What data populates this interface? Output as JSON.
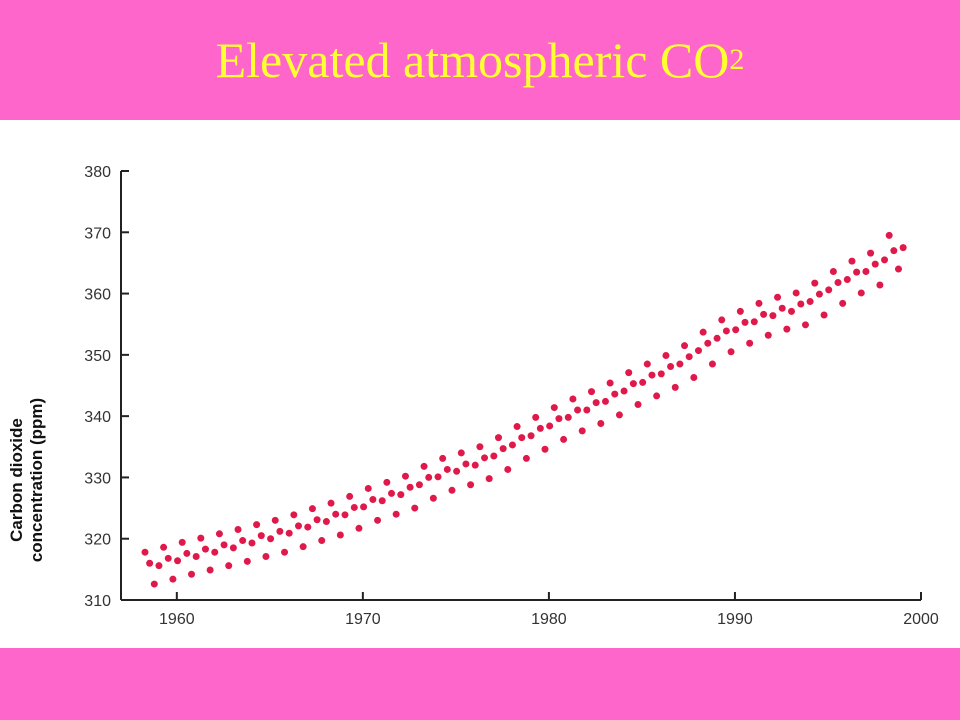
{
  "slide": {
    "title": "Elevated atmospheric CO",
    "title_subscript": "2"
  },
  "chart_data": {
    "type": "scatter",
    "ylabel": [
      "Carbon dioxide",
      "concentration (ppm)"
    ],
    "color": "#e0194b",
    "xlim": [
      1957,
      2000
    ],
    "xticks": [
      1960,
      1970,
      1980,
      1990,
      2000
    ],
    "ylim": [
      310,
      380
    ],
    "yticks": [
      310,
      320,
      330,
      340,
      350,
      360,
      370,
      380
    ],
    "x": [
      1958.29,
      1958.54,
      1958.79,
      1959.04,
      1959.29,
      1959.54,
      1959.79,
      1960.04,
      1960.29,
      1960.54,
      1960.79,
      1961.04,
      1961.29,
      1961.54,
      1961.79,
      1962.04,
      1962.29,
      1962.54,
      1962.79,
      1963.04,
      1963.29,
      1963.54,
      1963.79,
      1964.04,
      1964.29,
      1964.54,
      1964.79,
      1965.04,
      1965.29,
      1965.54,
      1965.79,
      1966.04,
      1966.29,
      1966.54,
      1966.79,
      1967.04,
      1967.29,
      1967.54,
      1967.79,
      1968.04,
      1968.29,
      1968.54,
      1968.79,
      1969.04,
      1969.29,
      1969.54,
      1969.79,
      1970.04,
      1970.29,
      1970.54,
      1970.79,
      1971.04,
      1971.29,
      1971.54,
      1971.79,
      1972.04,
      1972.29,
      1972.54,
      1972.79,
      1973.04,
      1973.29,
      1973.54,
      1973.79,
      1974.04,
      1974.29,
      1974.54,
      1974.79,
      1975.04,
      1975.29,
      1975.54,
      1975.79,
      1976.04,
      1976.29,
      1976.54,
      1976.79,
      1977.04,
      1977.29,
      1977.54,
      1977.79,
      1978.04,
      1978.29,
      1978.54,
      1978.79,
      1979.04,
      1979.29,
      1979.54,
      1979.79,
      1980.04,
      1980.29,
      1980.54,
      1980.79,
      1981.04,
      1981.29,
      1981.54,
      1981.79,
      1982.04,
      1982.29,
      1982.54,
      1982.79,
      1983.04,
      1983.29,
      1983.54,
      1983.79,
      1984.04,
      1984.29,
      1984.54,
      1984.79,
      1985.04,
      1985.29,
      1985.54,
      1985.79,
      1986.04,
      1986.29,
      1986.54,
      1986.79,
      1987.04,
      1987.29,
      1987.54,
      1987.79,
      1988.04,
      1988.29,
      1988.54,
      1988.79,
      1989.04,
      1989.29,
      1989.54,
      1989.79,
      1990.04,
      1990.29,
      1990.54,
      1990.79,
      1991.04,
      1991.29,
      1991.54,
      1991.79,
      1992.04,
      1992.29,
      1992.54,
      1992.79,
      1993.04,
      1993.29,
      1993.54,
      1993.79,
      1994.04,
      1994.29,
      1994.54,
      1994.79,
      1995.04,
      1995.29,
      1995.54,
      1995.79,
      1996.04,
      1996.29,
      1996.54,
      1996.79,
      1997.04,
      1997.29,
      1997.54,
      1997.79,
      1998.04,
      1998.29,
      1998.54,
      1998.79,
      1999.04
    ],
    "values": [
      317.8,
      316.0,
      312.6,
      315.6,
      318.6,
      316.8,
      313.4,
      316.4,
      319.4,
      317.6,
      314.2,
      317.1,
      320.1,
      318.3,
      314.9,
      317.8,
      320.8,
      319.0,
      315.6,
      318.5,
      321.5,
      319.7,
      316.3,
      319.3,
      322.3,
      320.5,
      317.1,
      320.0,
      323.0,
      321.2,
      317.8,
      320.9,
      323.9,
      322.1,
      318.7,
      321.9,
      324.9,
      323.1,
      319.7,
      322.8,
      325.8,
      324.0,
      320.6,
      323.9,
      326.9,
      325.1,
      321.7,
      325.2,
      328.2,
      326.4,
      323.0,
      326.2,
      329.2,
      327.4,
      324.0,
      327.2,
      330.2,
      328.4,
      325.0,
      328.8,
      331.8,
      330.0,
      326.6,
      330.1,
      333.1,
      331.3,
      327.9,
      331.0,
      334.0,
      332.2,
      328.8,
      332.0,
      335.0,
      333.2,
      329.8,
      333.5,
      336.5,
      334.7,
      331.3,
      335.3,
      338.3,
      336.5,
      333.1,
      336.8,
      339.8,
      338.0,
      334.6,
      338.4,
      341.4,
      339.6,
      336.2,
      339.8,
      342.8,
      341.0,
      337.6,
      341.0,
      344.0,
      342.2,
      338.8,
      342.4,
      345.4,
      343.6,
      340.2,
      344.1,
      347.1,
      345.3,
      341.9,
      345.5,
      348.5,
      346.7,
      343.3,
      346.9,
      349.9,
      348.1,
      344.7,
      348.5,
      351.5,
      349.7,
      346.3,
      350.7,
      353.7,
      351.9,
      348.5,
      352.7,
      355.7,
      353.9,
      350.5,
      354.1,
      357.1,
      355.3,
      351.9,
      355.4,
      358.4,
      356.6,
      353.2,
      356.4,
      359.4,
      357.6,
      354.2,
      357.1,
      360.1,
      358.3,
      354.9,
      358.7,
      361.7,
      359.9,
      356.5,
      360.6,
      363.6,
      361.8,
      358.4,
      362.3,
      365.3,
      363.5,
      360.1,
      363.6,
      366.6,
      364.8,
      361.4,
      365.5,
      369.5,
      367.0,
      364.0,
      367.5
    ]
  }
}
